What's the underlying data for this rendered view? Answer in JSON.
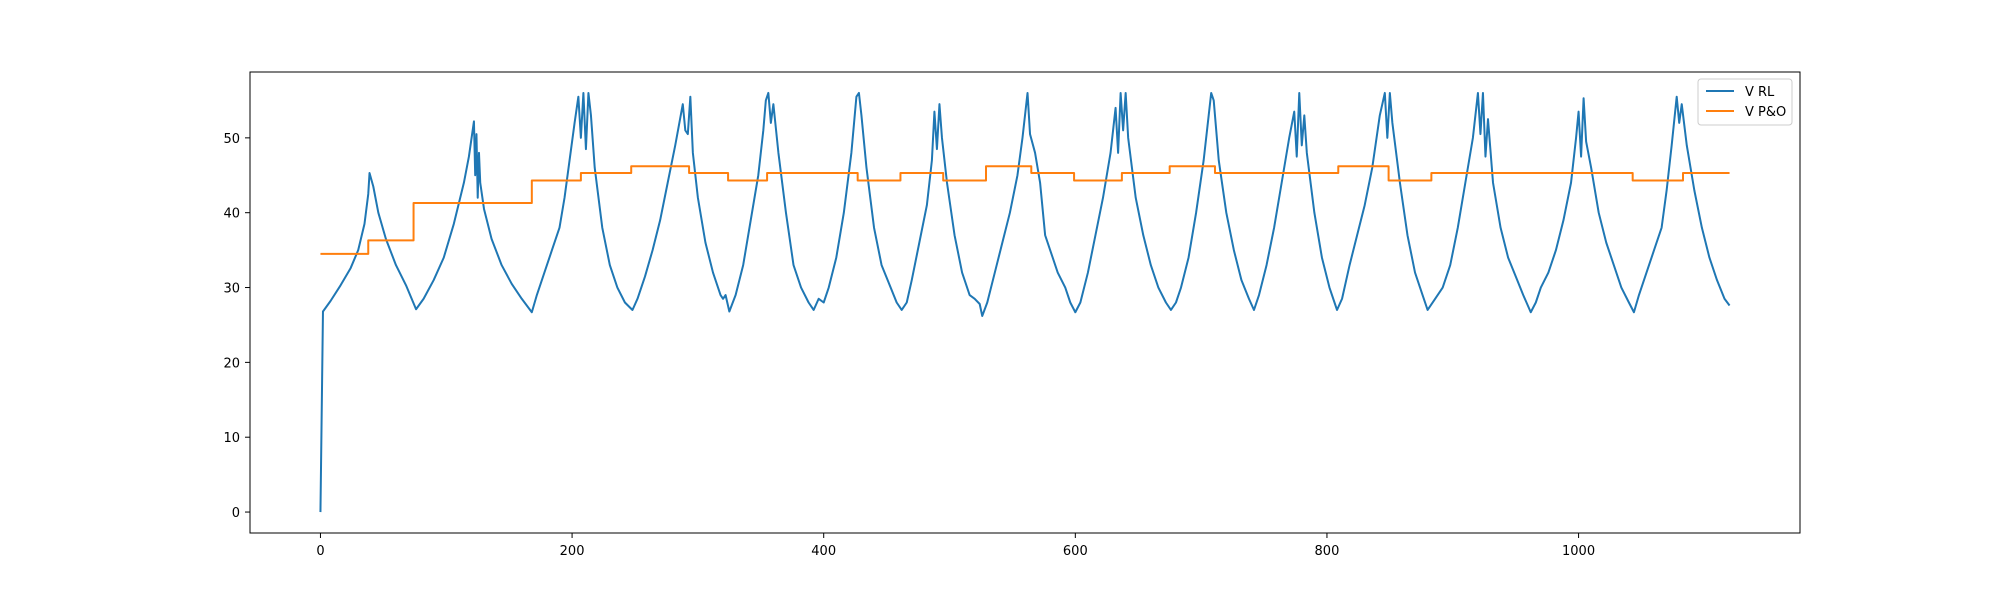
{
  "chart_data": {
    "type": "line",
    "title": "",
    "xlabel": "",
    "ylabel": "",
    "xlim": [
      -56,
      1176
    ],
    "ylim": [
      -2.8,
      58.8
    ],
    "x_ticks": [
      0,
      200,
      400,
      600,
      800,
      1000
    ],
    "y_ticks": [
      0,
      10,
      20,
      30,
      40,
      50
    ],
    "grid": false,
    "legend_position": "top-right",
    "series": [
      {
        "name": "V RL",
        "color": "#1f77b4",
        "points": [
          [
            0,
            0
          ],
          [
            2,
            26.8
          ],
          [
            8,
            28.2
          ],
          [
            16,
            30.3
          ],
          [
            24,
            32.6
          ],
          [
            30,
            35
          ],
          [
            35,
            38.5
          ],
          [
            38,
            42.5
          ],
          [
            39,
            45.3
          ],
          [
            42,
            43.5
          ],
          [
            46,
            40
          ],
          [
            52,
            36.5
          ],
          [
            60,
            33
          ],
          [
            68,
            30.3
          ],
          [
            76,
            27.1
          ],
          [
            82,
            28.5
          ],
          [
            90,
            31
          ],
          [
            98,
            34
          ],
          [
            106,
            38.5
          ],
          [
            114,
            44
          ],
          [
            118,
            47.5
          ],
          [
            122,
            52.2
          ],
          [
            123,
            45
          ],
          [
            124,
            50.5
          ],
          [
            125,
            42
          ],
          [
            126,
            48
          ],
          [
            127,
            44
          ],
          [
            130,
            40.5
          ],
          [
            136,
            36.5
          ],
          [
            144,
            33
          ],
          [
            152,
            30.5
          ],
          [
            160,
            28.5
          ],
          [
            168,
            26.7
          ],
          [
            172,
            29
          ],
          [
            178,
            32
          ],
          [
            184,
            35
          ],
          [
            190,
            38
          ],
          [
            194,
            42
          ],
          [
            198,
            47
          ],
          [
            202,
            52
          ],
          [
            205,
            55.5
          ],
          [
            207,
            50
          ],
          [
            209,
            56
          ],
          [
            211,
            48.5
          ],
          [
            213,
            56
          ],
          [
            215,
            53
          ],
          [
            218,
            46
          ],
          [
            224,
            38
          ],
          [
            230,
            33
          ],
          [
            236,
            30
          ],
          [
            242,
            28
          ],
          [
            248,
            27
          ],
          [
            252,
            28.5
          ],
          [
            258,
            31.5
          ],
          [
            264,
            35
          ],
          [
            270,
            39
          ],
          [
            276,
            44
          ],
          [
            282,
            49
          ],
          [
            288,
            54.5
          ],
          [
            290,
            51
          ],
          [
            292,
            50.5
          ],
          [
            294,
            55.5
          ],
          [
            296,
            48
          ],
          [
            300,
            42
          ],
          [
            306,
            36
          ],
          [
            312,
            32
          ],
          [
            318,
            29
          ],
          [
            320,
            28.5
          ],
          [
            322,
            29
          ],
          [
            325,
            26.8
          ],
          [
            330,
            29
          ],
          [
            336,
            33
          ],
          [
            342,
            39
          ],
          [
            348,
            45
          ],
          [
            352,
            51
          ],
          [
            354,
            55
          ],
          [
            356,
            56
          ],
          [
            358,
            52
          ],
          [
            360,
            54.5
          ],
          [
            364,
            48
          ],
          [
            370,
            40
          ],
          [
            376,
            33
          ],
          [
            382,
            30
          ],
          [
            388,
            28
          ],
          [
            392,
            27
          ],
          [
            396,
            28.5
          ],
          [
            400,
            28
          ],
          [
            404,
            30
          ],
          [
            410,
            34
          ],
          [
            416,
            40
          ],
          [
            422,
            48
          ],
          [
            426,
            55.5
          ],
          [
            428,
            56
          ],
          [
            430,
            53
          ],
          [
            434,
            46
          ],
          [
            440,
            38
          ],
          [
            446,
            33
          ],
          [
            452,
            30.5
          ],
          [
            458,
            28
          ],
          [
            462,
            27
          ],
          [
            466,
            28
          ],
          [
            470,
            31
          ],
          [
            476,
            36
          ],
          [
            482,
            41
          ],
          [
            486,
            47
          ],
          [
            488,
            53.5
          ],
          [
            490,
            48.5
          ],
          [
            492,
            54.5
          ],
          [
            494,
            50
          ],
          [
            498,
            44
          ],
          [
            504,
            37
          ],
          [
            510,
            32
          ],
          [
            516,
            29
          ],
          [
            520,
            28.5
          ],
          [
            524,
            27.8
          ],
          [
            526,
            26.2
          ],
          [
            530,
            28
          ],
          [
            536,
            32
          ],
          [
            542,
            36
          ],
          [
            548,
            40
          ],
          [
            554,
            45
          ],
          [
            558,
            50
          ],
          [
            562,
            56
          ],
          [
            564,
            50.5
          ],
          [
            568,
            48
          ],
          [
            572,
            44
          ],
          [
            576,
            37
          ],
          [
            582,
            34
          ],
          [
            586,
            32
          ],
          [
            592,
            30
          ],
          [
            596,
            28
          ],
          [
            600,
            26.7
          ],
          [
            604,
            28
          ],
          [
            610,
            32
          ],
          [
            616,
            37
          ],
          [
            622,
            42
          ],
          [
            628,
            48
          ],
          [
            632,
            54
          ],
          [
            634,
            48
          ],
          [
            636,
            56
          ],
          [
            638,
            51
          ],
          [
            640,
            56
          ],
          [
            642,
            50
          ],
          [
            648,
            42
          ],
          [
            654,
            37
          ],
          [
            660,
            33
          ],
          [
            666,
            30
          ],
          [
            672,
            28
          ],
          [
            676,
            27
          ],
          [
            680,
            28
          ],
          [
            684,
            30
          ],
          [
            690,
            34
          ],
          [
            696,
            40
          ],
          [
            702,
            47
          ],
          [
            706,
            53
          ],
          [
            708,
            56
          ],
          [
            710,
            55
          ],
          [
            714,
            47
          ],
          [
            720,
            40
          ],
          [
            726,
            35
          ],
          [
            732,
            31
          ],
          [
            738,
            28.5
          ],
          [
            742,
            27
          ],
          [
            746,
            29
          ],
          [
            752,
            33
          ],
          [
            758,
            38
          ],
          [
            764,
            44
          ],
          [
            770,
            50
          ],
          [
            774,
            53.5
          ],
          [
            776,
            47.5
          ],
          [
            778,
            56
          ],
          [
            780,
            49
          ],
          [
            782,
            53
          ],
          [
            784,
            48
          ],
          [
            790,
            40
          ],
          [
            796,
            34
          ],
          [
            802,
            30
          ],
          [
            806,
            28
          ],
          [
            808,
            27
          ],
          [
            812,
            28.5
          ],
          [
            818,
            33
          ],
          [
            824,
            37
          ],
          [
            830,
            41
          ],
          [
            836,
            46
          ],
          [
            842,
            53
          ],
          [
            846,
            56
          ],
          [
            848,
            50
          ],
          [
            850,
            56
          ],
          [
            852,
            52
          ],
          [
            858,
            44
          ],
          [
            864,
            37
          ],
          [
            870,
            32
          ],
          [
            876,
            29
          ],
          [
            880,
            27
          ],
          [
            886,
            28.5
          ],
          [
            892,
            30
          ],
          [
            898,
            33
          ],
          [
            904,
            38
          ],
          [
            910,
            44
          ],
          [
            916,
            50
          ],
          [
            920,
            56
          ],
          [
            922,
            50.5
          ],
          [
            924,
            56
          ],
          [
            926,
            47.5
          ],
          [
            928,
            52.5
          ],
          [
            932,
            44
          ],
          [
            938,
            38
          ],
          [
            944,
            34
          ],
          [
            950,
            31.5
          ],
          [
            956,
            29
          ],
          [
            962,
            26.7
          ],
          [
            966,
            28
          ],
          [
            970,
            30
          ],
          [
            976,
            32
          ],
          [
            982,
            35
          ],
          [
            988,
            39
          ],
          [
            994,
            44
          ],
          [
            998,
            50
          ],
          [
            1000,
            53.5
          ],
          [
            1002,
            47.5
          ],
          [
            1004,
            55.3
          ],
          [
            1006,
            49.5
          ],
          [
            1010,
            46
          ],
          [
            1016,
            40
          ],
          [
            1022,
            36
          ],
          [
            1028,
            33
          ],
          [
            1034,
            30
          ],
          [
            1040,
            28
          ],
          [
            1044,
            26.7
          ],
          [
            1048,
            29
          ],
          [
            1054,
            32
          ],
          [
            1060,
            35
          ],
          [
            1066,
            38
          ],
          [
            1070,
            43
          ],
          [
            1074,
            49
          ],
          [
            1078,
            55.5
          ],
          [
            1080,
            52
          ],
          [
            1082,
            54.5
          ],
          [
            1086,
            49
          ],
          [
            1092,
            43
          ],
          [
            1098,
            38
          ],
          [
            1104,
            34
          ],
          [
            1110,
            31
          ],
          [
            1116,
            28.5
          ],
          [
            1120,
            27.6
          ]
        ]
      },
      {
        "name": "V P&O",
        "color": "#ff7f0e",
        "points": [
          [
            0,
            34.5
          ],
          [
            38,
            34.5
          ],
          [
            38,
            36.3
          ],
          [
            74,
            36.3
          ],
          [
            74,
            41.3
          ],
          [
            168,
            41.3
          ],
          [
            168,
            44.3
          ],
          [
            207,
            44.3
          ],
          [
            207,
            45.3
          ],
          [
            247,
            45.3
          ],
          [
            247,
            46.2
          ],
          [
            293,
            46.2
          ],
          [
            293,
            45.3
          ],
          [
            324,
            45.3
          ],
          [
            324,
            44.3
          ],
          [
            355,
            44.3
          ],
          [
            355,
            45.3
          ],
          [
            427,
            45.3
          ],
          [
            427,
            44.3
          ],
          [
            461,
            44.3
          ],
          [
            461,
            45.3
          ],
          [
            495,
            45.3
          ],
          [
            495,
            44.3
          ],
          [
            529,
            44.3
          ],
          [
            529,
            46.2
          ],
          [
            565,
            46.2
          ],
          [
            565,
            45.3
          ],
          [
            599,
            45.3
          ],
          [
            599,
            44.3
          ],
          [
            637,
            44.3
          ],
          [
            637,
            45.3
          ],
          [
            675,
            45.3
          ],
          [
            675,
            46.2
          ],
          [
            711,
            46.2
          ],
          [
            711,
            45.3
          ],
          [
            809,
            45.3
          ],
          [
            809,
            46.2
          ],
          [
            849,
            46.2
          ],
          [
            849,
            44.3
          ],
          [
            883,
            44.3
          ],
          [
            883,
            45.3
          ],
          [
            1043,
            45.3
          ],
          [
            1043,
            44.3
          ],
          [
            1083,
            44.3
          ],
          [
            1083,
            45.3
          ],
          [
            1120,
            45.3
          ]
        ]
      }
    ]
  }
}
